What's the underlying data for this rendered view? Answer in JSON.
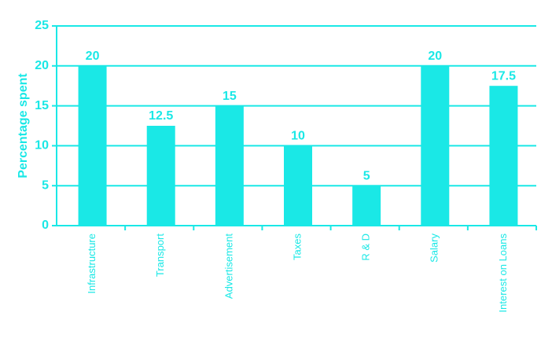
{
  "chart_data": {
    "type": "bar",
    "y_label": "Percentage spent",
    "categories": [
      "Infrastructure",
      "Transport",
      "Advertisement",
      "Taxes",
      "R & D",
      "Salary",
      "Interest on Loans"
    ],
    "values": [
      20,
      12.5,
      15,
      10,
      5,
      20,
      17.5
    ],
    "color": "#1ae8e6",
    "ylim": [
      0,
      25
    ],
    "yticks": [
      0,
      5,
      10,
      15,
      20,
      25
    ],
    "grid": true,
    "data_labels": true
  }
}
